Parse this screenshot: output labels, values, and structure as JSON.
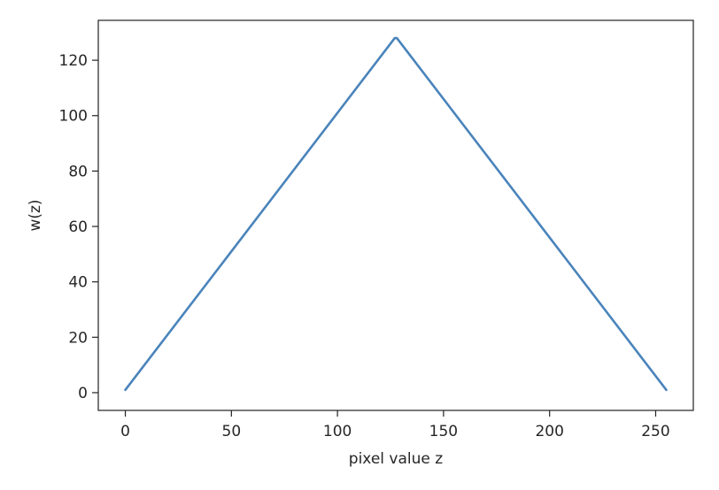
{
  "chart_data": {
    "type": "line",
    "title": "",
    "xlabel": "pixel value z",
    "ylabel": "w(z)",
    "xlim": [
      -12.75,
      267.75
    ],
    "ylim": [
      -6.4,
      134.4
    ],
    "xticks": [
      0,
      50,
      100,
      150,
      200,
      250
    ],
    "yticks": [
      0,
      20,
      40,
      60,
      80,
      100,
      120
    ],
    "grid": false,
    "series": [
      {
        "color": "#4a84bb",
        "x": [
          0,
          127,
          128,
          255
        ],
        "y": [
          1,
          128,
          128,
          1
        ]
      }
    ]
  }
}
